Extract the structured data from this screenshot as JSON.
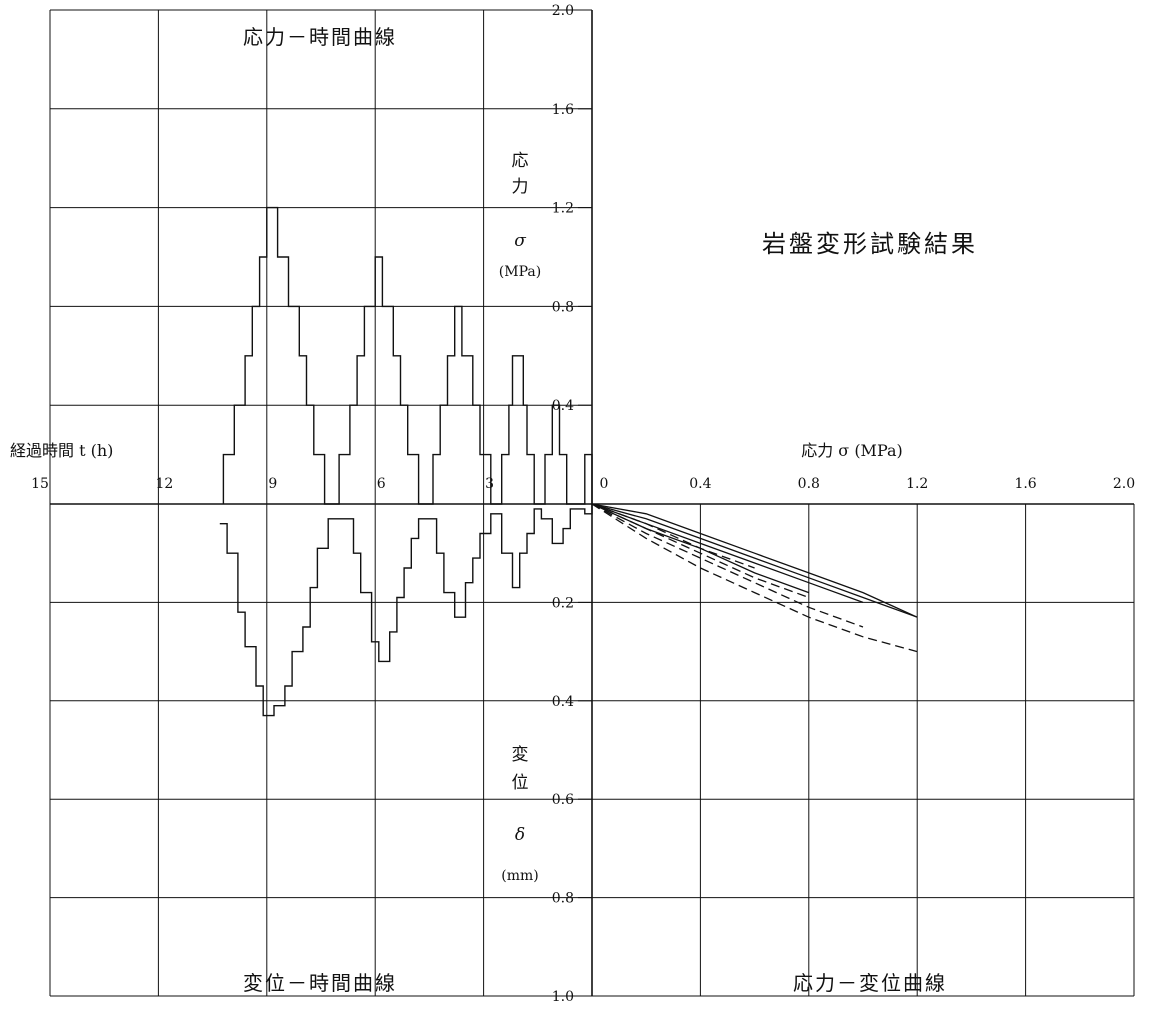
{
  "titles": {
    "stress_time": "応力－時間曲線",
    "main": "岩盤変形試験結果",
    "disp_time": "変位－時間曲線",
    "stress_disp": "応力－変位曲線"
  },
  "axis_labels": {
    "time": "経過時間 t (h)",
    "stress_right": "応力 σ (MPa)",
    "stress_vertical": [
      "応",
      "力",
      "σ",
      "(MPa)"
    ],
    "disp_vertical": [
      "変",
      "位",
      "δ",
      "(mm)"
    ]
  },
  "chart_data": [
    {
      "type": "line",
      "title": "応力－時間曲線",
      "xlabel": "経過時間 t (h)",
      "ylabel": "応力 σ (MPa)",
      "x_reversed": true,
      "xlim": [
        0,
        15
      ],
      "ylim": [
        0,
        2.0
      ],
      "xticks": [
        "15",
        "12",
        "9",
        "6",
        "3"
      ],
      "yticks": [
        "2.0",
        "1.6",
        "1.2",
        "0.8",
        "0.4"
      ],
      "grid": true,
      "series": [
        {
          "points": [
            [
              0.0,
              0.0
            ],
            [
              0.0,
              0.2
            ],
            [
              0.2,
              0.2
            ],
            [
              0.2,
              0.0
            ],
            [
              0.7,
              0.0
            ],
            [
              0.7,
              0.2
            ],
            [
              0.9,
              0.2
            ],
            [
              0.9,
              0.4
            ],
            [
              1.1,
              0.4
            ],
            [
              1.1,
              0.2
            ],
            [
              1.3,
              0.2
            ],
            [
              1.3,
              0.0
            ],
            [
              1.6,
              0.0
            ],
            [
              1.6,
              0.2
            ],
            [
              1.8,
              0.2
            ],
            [
              1.8,
              0.4
            ],
            [
              1.9,
              0.4
            ],
            [
              1.9,
              0.6
            ],
            [
              2.2,
              0.6
            ],
            [
              2.2,
              0.4
            ],
            [
              2.3,
              0.4
            ],
            [
              2.3,
              0.2
            ],
            [
              2.5,
              0.2
            ],
            [
              2.5,
              0.0
            ],
            [
              2.8,
              0.0
            ],
            [
              2.8,
              0.2
            ],
            [
              3.1,
              0.2
            ],
            [
              3.1,
              0.4
            ],
            [
              3.3,
              0.4
            ],
            [
              3.3,
              0.6
            ],
            [
              3.6,
              0.6
            ],
            [
              3.6,
              0.8
            ],
            [
              3.8,
              0.8
            ],
            [
              3.8,
              0.6
            ],
            [
              4.0,
              0.6
            ],
            [
              4.0,
              0.4
            ],
            [
              4.2,
              0.4
            ],
            [
              4.2,
              0.2
            ],
            [
              4.4,
              0.2
            ],
            [
              4.4,
              0.0
            ],
            [
              4.8,
              0.0
            ],
            [
              4.8,
              0.2
            ],
            [
              5.1,
              0.2
            ],
            [
              5.1,
              0.4
            ],
            [
              5.3,
              0.4
            ],
            [
              5.3,
              0.6
            ],
            [
              5.5,
              0.6
            ],
            [
              5.5,
              0.8
            ],
            [
              5.8,
              0.8
            ],
            [
              5.8,
              1.0
            ],
            [
              6.0,
              1.0
            ],
            [
              6.0,
              0.8
            ],
            [
              6.3,
              0.8
            ],
            [
              6.3,
              0.6
            ],
            [
              6.5,
              0.6
            ],
            [
              6.5,
              0.4
            ],
            [
              6.7,
              0.4
            ],
            [
              6.7,
              0.2
            ],
            [
              7.0,
              0.2
            ],
            [
              7.0,
              0.0
            ],
            [
              7.4,
              0.0
            ],
            [
              7.4,
              0.2
            ],
            [
              7.7,
              0.2
            ],
            [
              7.7,
              0.4
            ],
            [
              7.9,
              0.4
            ],
            [
              7.9,
              0.6
            ],
            [
              8.1,
              0.6
            ],
            [
              8.1,
              0.8
            ],
            [
              8.4,
              0.8
            ],
            [
              8.4,
              1.0
            ],
            [
              8.7,
              1.0
            ],
            [
              8.7,
              1.2
            ],
            [
              9.0,
              1.2
            ],
            [
              9.0,
              1.0
            ],
            [
              9.2,
              1.0
            ],
            [
              9.2,
              0.8
            ],
            [
              9.4,
              0.8
            ],
            [
              9.4,
              0.6
            ],
            [
              9.6,
              0.6
            ],
            [
              9.6,
              0.4
            ],
            [
              9.9,
              0.4
            ],
            [
              9.9,
              0.2
            ],
            [
              10.2,
              0.2
            ],
            [
              10.2,
              0.0
            ]
          ]
        }
      ]
    },
    {
      "type": "line",
      "title": "変位－時間曲線",
      "xlabel": "経過時間 t (h)",
      "ylabel": "変位 δ (mm)",
      "x_reversed": true,
      "y_reversed": true,
      "xlim": [
        0,
        15
      ],
      "ylim": [
        0,
        1.0
      ],
      "yticks": [
        "0.2",
        "0.4",
        "0.6",
        "0.8",
        "1.0"
      ],
      "grid": true,
      "series": [
        {
          "points": [
            [
              0.0,
              0.0
            ],
            [
              0.0,
              0.02
            ],
            [
              0.2,
              0.02
            ],
            [
              0.2,
              0.01
            ],
            [
              0.6,
              0.01
            ],
            [
              0.6,
              0.05
            ],
            [
              0.8,
              0.05
            ],
            [
              0.8,
              0.08
            ],
            [
              1.1,
              0.08
            ],
            [
              1.1,
              0.03
            ],
            [
              1.4,
              0.03
            ],
            [
              1.4,
              0.01
            ],
            [
              1.6,
              0.01
            ],
            [
              1.6,
              0.06
            ],
            [
              1.8,
              0.06
            ],
            [
              1.8,
              0.1
            ],
            [
              2.0,
              0.1
            ],
            [
              2.0,
              0.17
            ],
            [
              2.2,
              0.17
            ],
            [
              2.2,
              0.1
            ],
            [
              2.5,
              0.1
            ],
            [
              2.5,
              0.02
            ],
            [
              2.8,
              0.02
            ],
            [
              2.8,
              0.06
            ],
            [
              3.1,
              0.06
            ],
            [
              3.1,
              0.11
            ],
            [
              3.3,
              0.11
            ],
            [
              3.3,
              0.16
            ],
            [
              3.5,
              0.16
            ],
            [
              3.5,
              0.23
            ],
            [
              3.8,
              0.23
            ],
            [
              3.8,
              0.18
            ],
            [
              4.1,
              0.18
            ],
            [
              4.1,
              0.1
            ],
            [
              4.3,
              0.1
            ],
            [
              4.3,
              0.03
            ],
            [
              4.8,
              0.03
            ],
            [
              4.8,
              0.07
            ],
            [
              5.0,
              0.07
            ],
            [
              5.0,
              0.13
            ],
            [
              5.2,
              0.13
            ],
            [
              5.2,
              0.19
            ],
            [
              5.4,
              0.19
            ],
            [
              5.4,
              0.26
            ],
            [
              5.6,
              0.26
            ],
            [
              5.6,
              0.32
            ],
            [
              5.9,
              0.32
            ],
            [
              5.9,
              0.28
            ],
            [
              6.1,
              0.28
            ],
            [
              6.1,
              0.18
            ],
            [
              6.4,
              0.18
            ],
            [
              6.4,
              0.1
            ],
            [
              6.6,
              0.1
            ],
            [
              6.6,
              0.03
            ],
            [
              7.3,
              0.03
            ],
            [
              7.3,
              0.09
            ],
            [
              7.6,
              0.09
            ],
            [
              7.6,
              0.17
            ],
            [
              7.8,
              0.17
            ],
            [
              7.8,
              0.25
            ],
            [
              8.0,
              0.25
            ],
            [
              8.0,
              0.3
            ],
            [
              8.3,
              0.3
            ],
            [
              8.3,
              0.37
            ],
            [
              8.5,
              0.37
            ],
            [
              8.5,
              0.41
            ],
            [
              8.8,
              0.41
            ],
            [
              8.8,
              0.43
            ],
            [
              9.1,
              0.43
            ],
            [
              9.1,
              0.37
            ],
            [
              9.3,
              0.37
            ],
            [
              9.3,
              0.29
            ],
            [
              9.6,
              0.29
            ],
            [
              9.6,
              0.22
            ],
            [
              9.8,
              0.22
            ],
            [
              9.8,
              0.1
            ],
            [
              10.1,
              0.1
            ],
            [
              10.1,
              0.04
            ],
            [
              10.3,
              0.04
            ]
          ]
        }
      ]
    },
    {
      "type": "line",
      "title": "応力－変位曲線",
      "xlabel": "応力 σ (MPa)",
      "ylabel": "変位 δ (mm)",
      "y_reversed": true,
      "xlim": [
        0,
        2.0
      ],
      "ylim": [
        0,
        1.0
      ],
      "xticks": [
        "0",
        "0.4",
        "0.8",
        "1.2",
        "1.6",
        "2.0"
      ],
      "grid": true,
      "series": [
        {
          "style": "solid",
          "points": [
            [
              0.0,
              0.0
            ],
            [
              0.2,
              0.02
            ],
            [
              0.4,
              0.06
            ],
            [
              0.6,
              0.1
            ],
            [
              0.8,
              0.14
            ],
            [
              1.0,
              0.18
            ],
            [
              1.2,
              0.23
            ]
          ]
        },
        {
          "style": "solid",
          "points": [
            [
              0.0,
              0.0
            ],
            [
              0.2,
              0.03
            ],
            [
              0.4,
              0.07
            ],
            [
              0.6,
              0.11
            ],
            [
              0.8,
              0.15
            ],
            [
              1.0,
              0.19
            ],
            [
              1.2,
              0.23
            ]
          ]
        },
        {
          "style": "solid",
          "points": [
            [
              0.0,
              0.0
            ],
            [
              0.2,
              0.04
            ],
            [
              0.4,
              0.08
            ],
            [
              0.6,
              0.12
            ],
            [
              0.8,
              0.16
            ],
            [
              1.0,
              0.2
            ]
          ]
        },
        {
          "style": "solid",
          "points": [
            [
              0.0,
              0.0
            ],
            [
              0.2,
              0.05
            ],
            [
              0.4,
              0.09
            ],
            [
              0.6,
              0.14
            ],
            [
              0.8,
              0.18
            ]
          ]
        },
        {
          "style": "dashed",
          "points": [
            [
              0.0,
              0.0
            ],
            [
              0.2,
              0.07
            ],
            [
              0.4,
              0.13
            ],
            [
              0.6,
              0.18
            ],
            [
              0.8,
              0.23
            ],
            [
              1.0,
              0.27
            ],
            [
              1.2,
              0.3
            ]
          ]
        },
        {
          "style": "dashed",
          "points": [
            [
              0.0,
              0.0
            ],
            [
              0.2,
              0.06
            ],
            [
              0.4,
              0.11
            ],
            [
              0.6,
              0.16
            ],
            [
              0.8,
              0.21
            ],
            [
              1.0,
              0.25
            ]
          ]
        },
        {
          "style": "dashed",
          "points": [
            [
              0.0,
              0.0
            ],
            [
              0.2,
              0.05
            ],
            [
              0.4,
              0.1
            ],
            [
              0.6,
              0.15
            ],
            [
              0.8,
              0.19
            ]
          ]
        },
        {
          "style": "dashed",
          "points": [
            [
              0.0,
              0.0
            ],
            [
              0.2,
              0.04
            ],
            [
              0.4,
              0.09
            ],
            [
              0.6,
              0.13
            ]
          ]
        }
      ]
    }
  ]
}
